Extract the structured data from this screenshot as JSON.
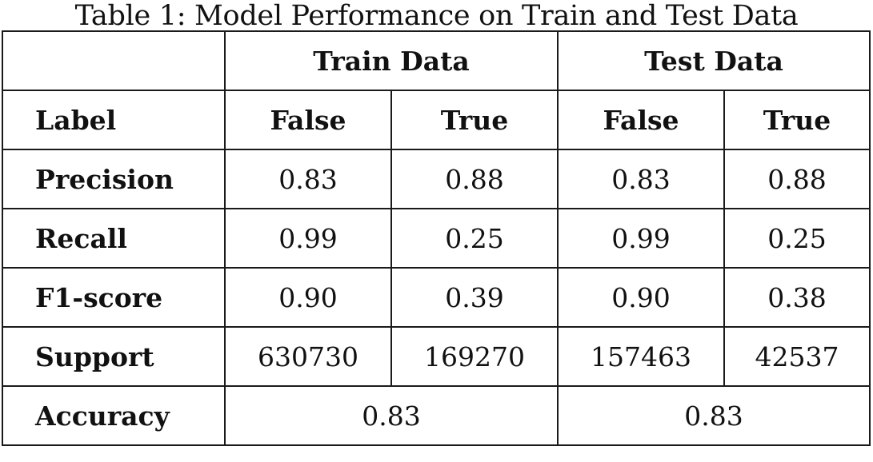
{
  "caption": "Table 1: Model Performance on Train and Test Data",
  "table": {
    "group_headers": [
      "Train Data",
      "Test Data"
    ],
    "label_header": "Label",
    "columns": [
      "False",
      "True",
      "False",
      "True"
    ],
    "rows": [
      {
        "label": "Precision",
        "values": [
          "0.83",
          "0.88",
          "0.83",
          "0.88"
        ]
      },
      {
        "label": "Recall",
        "values": [
          "0.99",
          "0.25",
          "0.99",
          "0.25"
        ]
      },
      {
        "label": "F1-score",
        "values": [
          "0.90",
          "0.39",
          "0.90",
          "0.38"
        ]
      },
      {
        "label": "Support",
        "values": [
          "630730",
          "169270",
          "157463",
          "42537"
        ]
      }
    ],
    "accuracy": {
      "label": "Accuracy",
      "values": [
        "0.83",
        "0.83"
      ]
    }
  }
}
